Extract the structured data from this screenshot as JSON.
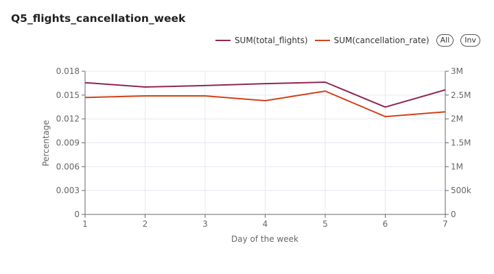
{
  "page": {
    "title": "Q5_flights_cancellation_week",
    "all_button": "All",
    "inv_button": "Inv"
  },
  "colors": {
    "total_flights": "#8e2452",
    "cancellation_rate": "#d14019",
    "grid": "#e4e8f0",
    "axis": "#666666"
  },
  "chart_data": {
    "type": "line",
    "x": [
      1,
      2,
      3,
      4,
      5,
      6,
      7
    ],
    "xlabel": "Day of the week",
    "ylabel": "Percentage",
    "ylim": [
      0,
      0.018
    ],
    "y2lim": [
      0,
      3000000
    ],
    "yticks": [
      "0",
      "0.003",
      "0.006",
      "0.009",
      "0.012",
      "0.015",
      "0.018"
    ],
    "y2ticks": [
      "0",
      "500k",
      "1M",
      "1.5M",
      "2M",
      "2.5M",
      "3M"
    ],
    "xticks": [
      "1",
      "2",
      "3",
      "4",
      "5",
      "6",
      "7"
    ],
    "legend": "top-right",
    "grid": true,
    "series": [
      {
        "name": "SUM(total_flights)",
        "axis": "right",
        "values": [
          2760000,
          2670000,
          2700000,
          2740000,
          2770000,
          2250000,
          2610000
        ]
      },
      {
        "name": "SUM(cancellation_rate)",
        "axis": "left",
        "values": [
          0.0147,
          0.0149,
          0.0149,
          0.0143,
          0.0155,
          0.0123,
          0.0129
        ]
      }
    ]
  }
}
